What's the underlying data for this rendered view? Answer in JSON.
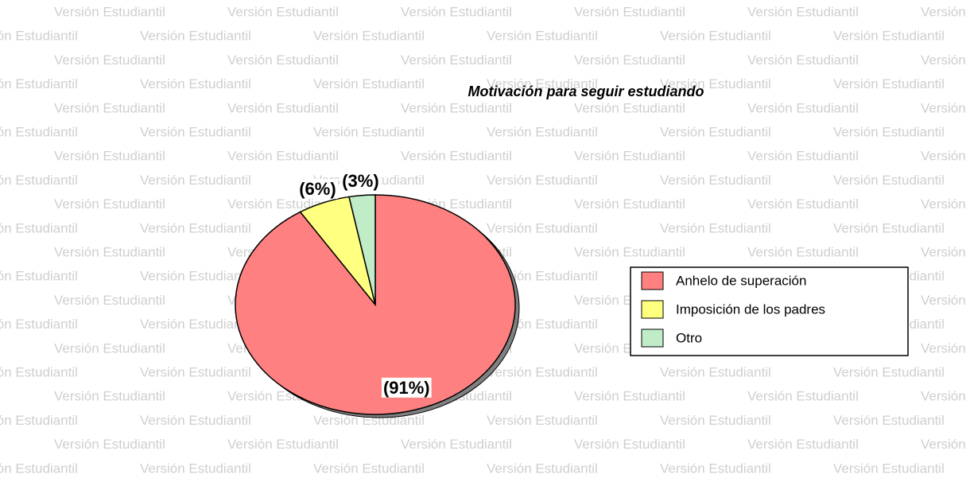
{
  "chart_data": {
    "type": "pie",
    "title": "Motivación para seguir estudiando",
    "watermark": "Versión Estudiantil",
    "categories": [
      "Anhelo de superación",
      "Imposición de los padres",
      "Otro"
    ],
    "values": [
      91,
      6,
      3
    ],
    "value_labels": [
      "(91%)",
      "(6%)",
      "(3%)"
    ],
    "colors": [
      "#ff8080",
      "#ffff80",
      "#c0ecc8"
    ],
    "legend": "right"
  }
}
